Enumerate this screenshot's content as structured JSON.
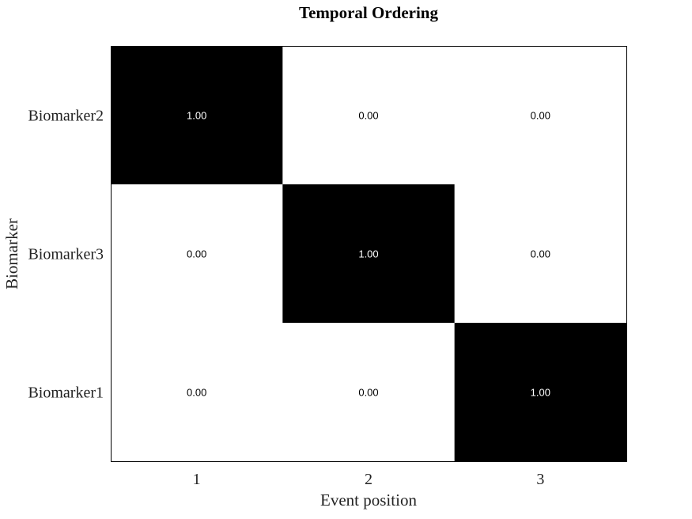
{
  "chart_data": {
    "type": "heatmap",
    "title": "Temporal Ordering",
    "xlabel": "Event position",
    "ylabel": "Biomarker",
    "x_categories": [
      "1",
      "2",
      "3"
    ],
    "y_categories": [
      "Biomarker2",
      "Biomarker3",
      "Biomarker1"
    ],
    "values": [
      [
        1.0,
        0.0,
        0.0
      ],
      [
        0.0,
        1.0,
        0.0
      ],
      [
        0.0,
        0.0,
        1.0
      ]
    ],
    "value_labels": [
      [
        "1.00",
        "0.00",
        "0.00"
      ],
      [
        "0.00",
        "1.00",
        "0.00"
      ],
      [
        "0.00",
        "0.00",
        "1.00"
      ]
    ],
    "value_range": [
      0,
      1
    ],
    "colormap": {
      "low": "#ffffff",
      "high": "#000000"
    },
    "grid": false,
    "legend": "none"
  }
}
